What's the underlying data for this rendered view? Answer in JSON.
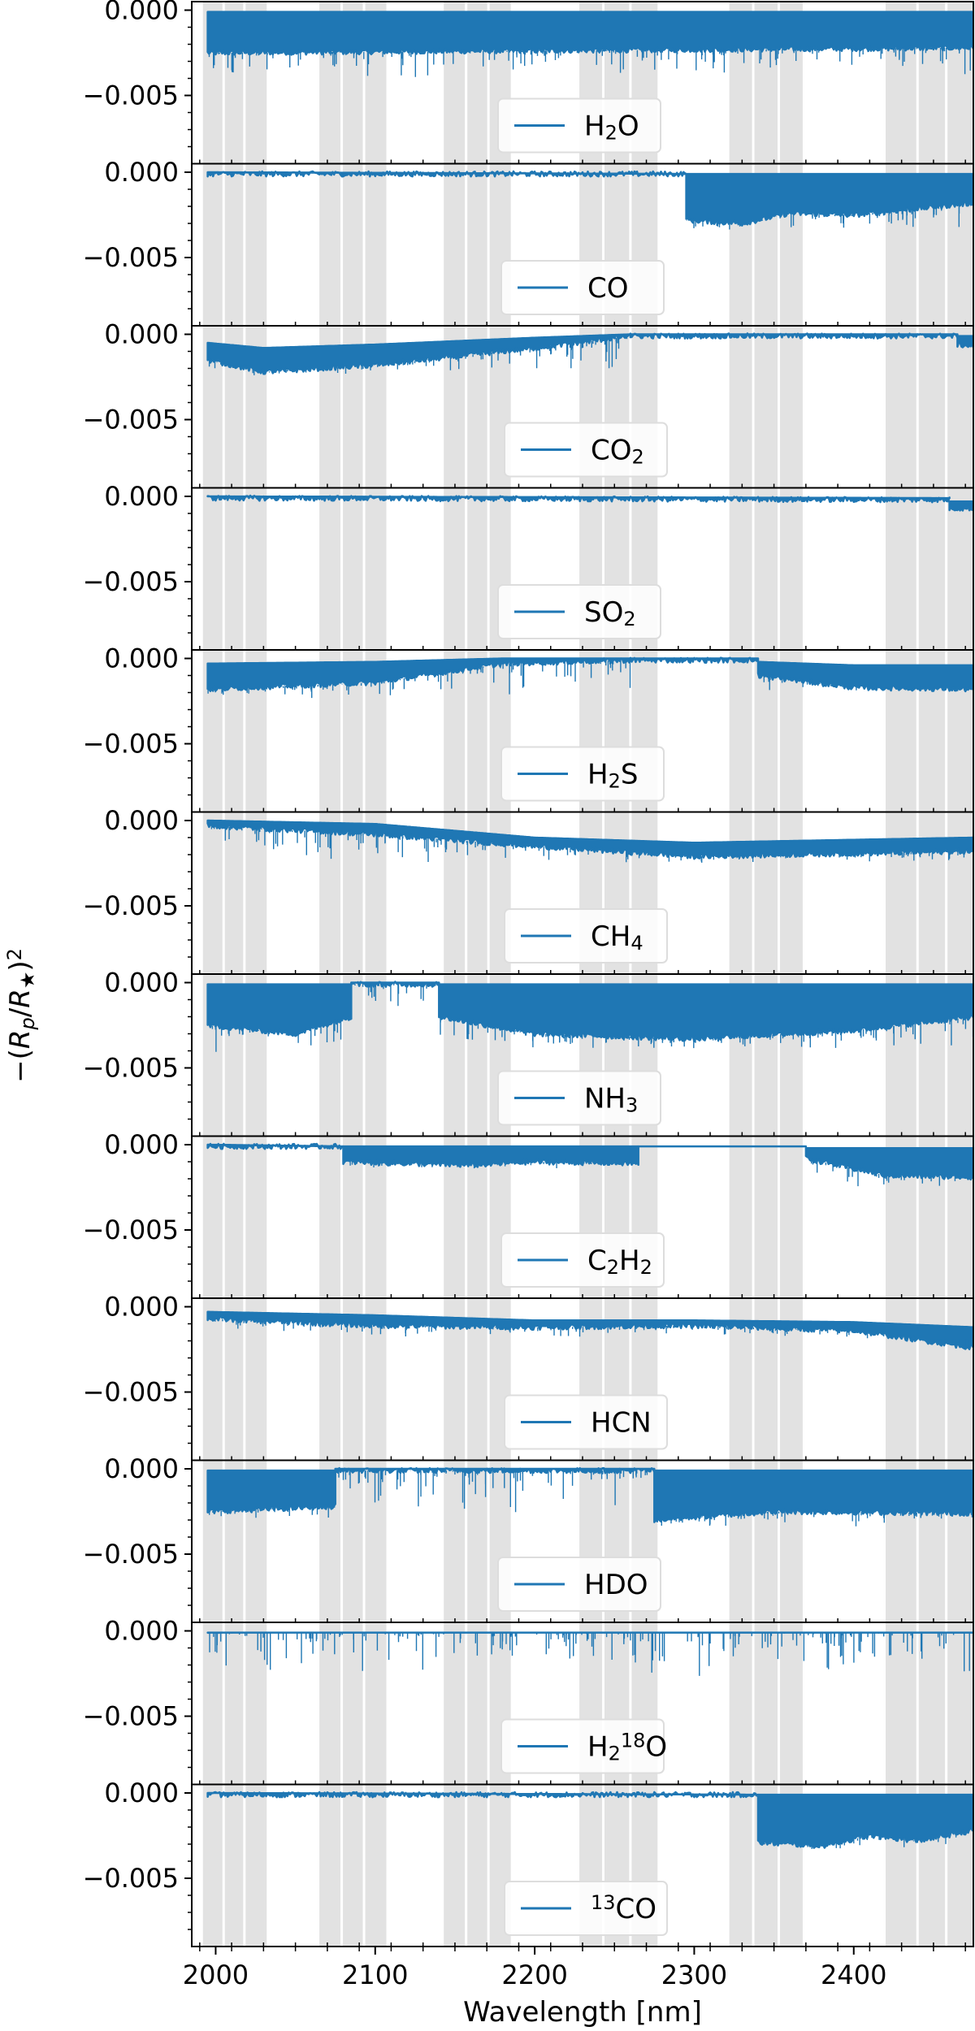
{
  "chart_data": {
    "type": "line",
    "layout": "vertically stacked panels sharing x-axis",
    "xlabel": "Wavelength [nm]",
    "ylabel": "−(Rp/R★)²",
    "xlim": [
      1985,
      2475
    ],
    "ylim": [
      -0.009,
      0.0005
    ],
    "x_ticks": [
      2000,
      2100,
      2200,
      2300,
      2400
    ],
    "y_ticks": [
      0.0,
      -0.005
    ],
    "y_tick_labels": [
      "0.000",
      "−0.005"
    ],
    "grid": false,
    "legend_placement": "lower-center",
    "line_color": "#1f77b4",
    "band_color": "#e2e2e2",
    "shaded_bands_nm": [
      [
        1992,
        2032
      ],
      [
        2065,
        2107
      ],
      [
        2143,
        2185
      ],
      [
        2228,
        2277
      ],
      [
        2322,
        2368
      ],
      [
        2420,
        2475
      ]
    ],
    "band_gaps_nm": [
      2005,
      2018,
      2079,
      2093,
      2157,
      2171,
      2243,
      2260,
      2337,
      2353,
      2440,
      2458
    ],
    "series": [
      {
        "name": "H₂O",
        "label_parts": [
          [
            "H",
            ""
          ],
          [
            "2",
            "sub"
          ],
          [
            "O",
            ""
          ]
        ],
        "segments": [
          {
            "x": [
              1995,
              2475
            ],
            "top": [
              -0.0001,
              -0.0001
            ],
            "bottom": [
              -0.0025,
              -0.0022
            ],
            "spikes": 0.004
          }
        ]
      },
      {
        "name": "CO",
        "label_parts": [
          [
            "CO",
            ""
          ]
        ],
        "segments": [
          {
            "x": [
              1995,
              2295
            ],
            "top": [
              0.0,
              -0.0001
            ],
            "bottom": [
              -0.0001,
              -0.0001
            ],
            "spikes": 0
          },
          {
            "x": [
              2295,
              2330,
              2360,
              2400,
              2475
            ],
            "top": [
              -0.0001,
              -0.0001,
              -0.0001,
              -0.0001,
              -0.0001
            ],
            "bottom": [
              -0.0028,
              -0.003,
              -0.0024,
              -0.0025,
              -0.0018
            ],
            "spikes": 0.0035
          }
        ]
      },
      {
        "name": "CO₂",
        "label_parts": [
          [
            "CO",
            ""
          ],
          [
            "2",
            "sub"
          ]
        ],
        "segments": [
          {
            "x": [
              1995,
              2030,
              2100,
              2200,
              2260
            ],
            "top": [
              -0.0005,
              -0.0008,
              -0.0006,
              -0.0002,
              0.0
            ],
            "bottom": [
              -0.0015,
              -0.0022,
              -0.0018,
              -0.0008,
              -0.0001
            ],
            "spikes": 0.0025
          },
          {
            "x": [
              2260,
              2465
            ],
            "top": [
              0.0,
              0.0
            ],
            "bottom": [
              -0.0001,
              -0.0001
            ],
            "spikes": 0
          },
          {
            "x": [
              2465,
              2475
            ],
            "top": [
              -0.0001,
              -0.0001
            ],
            "bottom": [
              -0.0006,
              -0.0007
            ],
            "spikes": 0
          }
        ]
      },
      {
        "name": "SO₂",
        "label_parts": [
          [
            "SO",
            ""
          ],
          [
            "2",
            "sub"
          ]
        ],
        "segments": [
          {
            "x": [
              1995,
              2460
            ],
            "top": [
              0.0,
              -0.0001
            ],
            "bottom": [
              -0.0001,
              -0.0002
            ],
            "spikes": 0
          },
          {
            "x": [
              2460,
              2475
            ],
            "top": [
              -0.0003,
              -0.0003
            ],
            "bottom": [
              -0.0007,
              -0.0007
            ],
            "spikes": 0
          }
        ]
      },
      {
        "name": "H₂S",
        "label_parts": [
          [
            "H",
            ""
          ],
          [
            "2",
            "sub"
          ],
          [
            "S",
            ""
          ]
        ],
        "segments": [
          {
            "x": [
              1995,
              2100,
              2180,
              2260
            ],
            "top": [
              -0.0003,
              -0.0002,
              0.0,
              0.0
            ],
            "bottom": [
              -0.0018,
              -0.0014,
              -0.0003,
              -0.0001
            ],
            "spikes": 0.0025
          },
          {
            "x": [
              2260,
              2340
            ],
            "top": [
              0.0,
              0.0
            ],
            "bottom": [
              -0.0001,
              -0.0001
            ],
            "spikes": 0
          },
          {
            "x": [
              2340,
              2400,
              2475
            ],
            "top": [
              -0.0002,
              -0.0004,
              -0.0004
            ],
            "bottom": [
              -0.001,
              -0.0017,
              -0.0018
            ],
            "spikes": 0.002
          }
        ]
      },
      {
        "name": "CH₄",
        "label_parts": [
          [
            "CH",
            ""
          ],
          [
            "4",
            "sub"
          ]
        ],
        "segments": [
          {
            "x": [
              1995,
              2100,
              2200,
              2300,
              2475
            ],
            "top": [
              0.0,
              -0.0002,
              -0.001,
              -0.0013,
              -0.001
            ],
            "bottom": [
              -0.0003,
              -0.0008,
              -0.0015,
              -0.0021,
              -0.0018
            ],
            "spikes": 0.0025
          }
        ]
      },
      {
        "name": "NH₃",
        "label_parts": [
          [
            "NH",
            ""
          ],
          [
            "3",
            "sub"
          ]
        ],
        "segments": [
          {
            "x": [
              1995,
              2050,
              2085
            ],
            "top": [
              -0.0001,
              -0.0001,
              -0.0001
            ],
            "bottom": [
              -0.0025,
              -0.003,
              -0.002
            ],
            "spikes": 0.0043
          },
          {
            "x": [
              2085,
              2140
            ],
            "top": [
              0.0,
              0.0
            ],
            "bottom": [
              -0.0001,
              -0.0001
            ],
            "spikes": 0.002
          },
          {
            "x": [
              2140,
              2200,
              2300,
              2400,
              2475
            ],
            "top": [
              -0.0001,
              -0.0001,
              -0.0001,
              -0.0001,
              -0.0001
            ],
            "bottom": [
              -0.002,
              -0.003,
              -0.0033,
              -0.0028,
              -0.002
            ],
            "spikes": 0.004
          }
        ]
      },
      {
        "name": "C₂H₂",
        "label_parts": [
          [
            "C",
            ""
          ],
          [
            "2",
            "sub"
          ],
          [
            "H",
            ""
          ],
          [
            "2",
            "sub"
          ]
        ],
        "segments": [
          {
            "x": [
              1995,
              2080
            ],
            "top": [
              0.0,
              -0.0001
            ],
            "bottom": [
              -0.0001,
              -0.0001
            ],
            "spikes": 0
          },
          {
            "x": [
              2080,
              2160,
              2200,
              2265
            ],
            "top": [
              -0.0001,
              -0.0001,
              -0.0001,
              -0.0001
            ],
            "bottom": [
              -0.001,
              -0.0012,
              -0.001,
              -0.0011
            ],
            "spikes": 0.0014
          },
          {
            "x": [
              2265,
              2370
            ],
            "top": [
              -0.0001,
              -0.0001
            ],
            "bottom": [
              -0.0001,
              -0.0001
            ],
            "spikes": 0
          },
          {
            "x": [
              2370,
              2420,
              2475
            ],
            "top": [
              -0.0002,
              -0.0002,
              -0.0002
            ],
            "bottom": [
              -0.0008,
              -0.0018,
              -0.0019
            ],
            "spikes": 0.0025
          }
        ]
      },
      {
        "name": "HCN",
        "label_parts": [
          [
            "HCN",
            ""
          ]
        ],
        "segments": [
          {
            "x": [
              1995,
              2100,
              2200,
              2300,
              2400,
              2475
            ],
            "top": [
              -0.0003,
              -0.0005,
              -0.0008,
              -0.0008,
              -0.0009,
              -0.0012
            ],
            "bottom": [
              -0.0007,
              -0.0011,
              -0.0012,
              -0.0011,
              -0.0014,
              -0.0024
            ],
            "spikes": 0.0019
          }
        ]
      },
      {
        "name": "HDO",
        "label_parts": [
          [
            "HDO",
            ""
          ]
        ],
        "segments": [
          {
            "x": [
              1995,
              2075
            ],
            "top": [
              -0.0001,
              -0.0001
            ],
            "bottom": [
              -0.0025,
              -0.0022
            ],
            "spikes": 0.003
          },
          {
            "x": [
              2075,
              2275
            ],
            "top": [
              0.0,
              0.0
            ],
            "bottom": [
              -0.0001,
              -0.0001
            ],
            "spikes": 0.0028
          },
          {
            "x": [
              2275,
              2350,
              2475
            ],
            "top": [
              -0.0001,
              -0.0001,
              -0.0001
            ],
            "bottom": [
              -0.003,
              -0.0025,
              -0.0026
            ],
            "spikes": 0.0035
          }
        ]
      },
      {
        "name": "H₂¹⁸O",
        "label_parts": [
          [
            "H",
            ""
          ],
          [
            "2",
            "sub"
          ],
          [
            "18",
            "sup"
          ],
          [
            "O",
            ""
          ]
        ],
        "segments": [
          {
            "x": [
              1995,
              2475
            ],
            "top": [
              -0.0001,
              -0.0001
            ],
            "bottom": [
              -0.0001,
              -0.0001
            ],
            "spikes": 0.0028
          }
        ]
      },
      {
        "name": "¹³CO",
        "label_parts": [
          [
            "13",
            "sup"
          ],
          [
            "CO",
            ""
          ]
        ],
        "segments": [
          {
            "x": [
              1995,
              2340
            ],
            "top": [
              0.0,
              -0.0001
            ],
            "bottom": [
              -0.0001,
              -0.0001
            ],
            "spikes": 0
          },
          {
            "x": [
              2340,
              2380,
              2410,
              2440,
              2475
            ],
            "top": [
              -0.0001,
              -0.0001,
              -0.0001,
              -0.0001,
              -0.0001
            ],
            "bottom": [
              -0.0029,
              -0.0031,
              -0.0025,
              -0.0028,
              -0.0022
            ],
            "spikes": 0.0033
          }
        ]
      }
    ]
  }
}
